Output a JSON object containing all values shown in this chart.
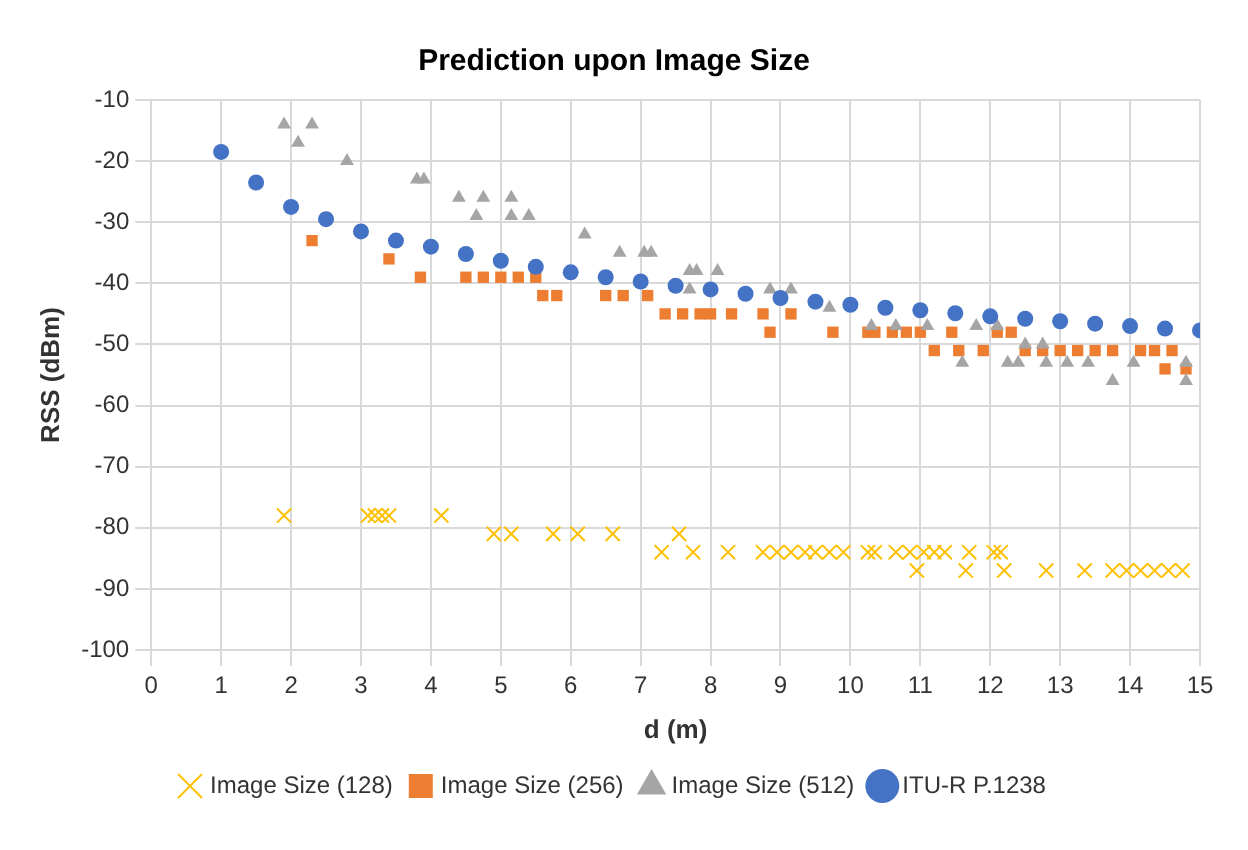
{
  "chart_data": {
    "type": "scatter",
    "title": "Prediction upon Image Size",
    "xlabel": "d (m)",
    "ylabel": "RSS (dBm)",
    "xlim": [
      0,
      15
    ],
    "xticks": [
      0,
      1,
      2,
      3,
      4,
      5,
      6,
      7,
      8,
      9,
      10,
      11,
      12,
      13,
      14,
      15
    ],
    "ylim": [
      -100,
      -10
    ],
    "yticks": [
      -100,
      -90,
      -80,
      -70,
      -60,
      -50,
      -40,
      -30,
      -20,
      -10
    ],
    "grid": true,
    "legend": "bottom",
    "series": [
      {
        "name": "Image Size (128)",
        "color": "#ffc000",
        "marker": "cross",
        "x": [
          1.9,
          3.1,
          3.2,
          3.3,
          3.4,
          4.15,
          4.9,
          5.15,
          5.75,
          6.1,
          6.6,
          7.3,
          7.55,
          7.75,
          8.25,
          8.75,
          8.95,
          9.15,
          9.35,
          9.5,
          9.7,
          9.9,
          10.25,
          10.35,
          10.65,
          10.85,
          10.95,
          11.05,
          11.2,
          11.35,
          11.65,
          11.7,
          12.05,
          12.15,
          12.2,
          12.8,
          13.35,
          13.75,
          13.95,
          14.15,
          14.35,
          14.55,
          14.75
        ],
        "values": [
          -78,
          -78,
          -78,
          -78,
          -78,
          -78,
          -81,
          -81,
          -81,
          -81,
          -81,
          -84,
          -81,
          -84,
          -84,
          -84,
          -84,
          -84,
          -84,
          -84,
          -84,
          -84,
          -84,
          -84,
          -84,
          -84,
          -87,
          -84,
          -84,
          -84,
          -87,
          -84,
          -84,
          -84,
          -87,
          -87,
          -87,
          -87,
          -87,
          -87,
          -87,
          -87,
          -87
        ]
      },
      {
        "name": "Image Size (256)",
        "color": "#ed7d31",
        "marker": "square",
        "x": [
          2.3,
          3.4,
          3.85,
          4.5,
          4.75,
          5.0,
          5.25,
          5.5,
          5.6,
          5.8,
          6.5,
          6.75,
          7.1,
          7.35,
          7.6,
          7.85,
          8.0,
          8.3,
          8.75,
          8.85,
          9.15,
          9.75,
          10.25,
          10.35,
          10.6,
          10.8,
          11.0,
          11.2,
          11.45,
          11.55,
          11.9,
          12.1,
          12.3,
          12.5,
          12.75,
          13.0,
          13.25,
          13.5,
          13.75,
          14.15,
          14.35,
          14.5,
          14.6,
          14.8
        ],
        "values": [
          -33,
          -36,
          -39,
          -39,
          -39,
          -39,
          -39,
          -39,
          -42,
          -42,
          -42,
          -42,
          -42,
          -45,
          -45,
          -45,
          -45,
          -45,
          -45,
          -48,
          -45,
          -48,
          -48,
          -48,
          -48,
          -48,
          -48,
          -51,
          -48,
          -51,
          -51,
          -48,
          -48,
          -51,
          -51,
          -51,
          -51,
          -51,
          -51,
          -51,
          -51,
          -54,
          -51,
          -54
        ]
      },
      {
        "name": "Image Size (512)",
        "color": "#a5a5a5",
        "marker": "triangle",
        "x": [
          1.9,
          2.1,
          2.3,
          2.8,
          3.8,
          3.9,
          4.4,
          4.65,
          4.75,
          5.15,
          5.15,
          5.4,
          6.2,
          6.7,
          7.05,
          7.15,
          7.7,
          7.7,
          7.8,
          8.1,
          8.85,
          9.15,
          9.7,
          10.3,
          10.65,
          11.1,
          11.6,
          11.8,
          12.1,
          12.25,
          12.4,
          12.5,
          12.75,
          12.8,
          13.1,
          13.4,
          13.75,
          14.05,
          14.8,
          14.8
        ],
        "values": [
          -14,
          -17,
          -14,
          -20,
          -23,
          -23,
          -26,
          -29,
          -26,
          -26,
          -29,
          -29,
          -32,
          -35,
          -35,
          -35,
          -38,
          -41,
          -38,
          -38,
          -41,
          -41,
          -44,
          -47,
          -47,
          -47,
          -53,
          -47,
          -47,
          -53,
          -53,
          -50,
          -50,
          -53,
          -53,
          -53,
          -56,
          -53,
          -53,
          -56
        ]
      },
      {
        "name": "ITU-R P.1238",
        "color": "#4472c4",
        "marker": "circle",
        "x": [
          1,
          1.5,
          2,
          2.5,
          3,
          3.5,
          4,
          4.5,
          5,
          5.5,
          6,
          6.5,
          7,
          7.5,
          8,
          8.5,
          9,
          9.5,
          10,
          10.5,
          11,
          11.5,
          12,
          12.5,
          13,
          13.5,
          14,
          14.5,
          15
        ],
        "values": [
          -18.5,
          -23.5,
          -27.5,
          -29.5,
          -31.5,
          -33,
          -34,
          -35.2,
          -36.3,
          -37.3,
          -38.2,
          -39,
          -39.7,
          -40.4,
          -41,
          -41.7,
          -42.4,
          -43,
          -43.5,
          -44,
          -44.4,
          -44.9,
          -45.4,
          -45.8,
          -46.2,
          -46.6,
          -47,
          -47.4,
          -47.7
        ]
      }
    ]
  }
}
